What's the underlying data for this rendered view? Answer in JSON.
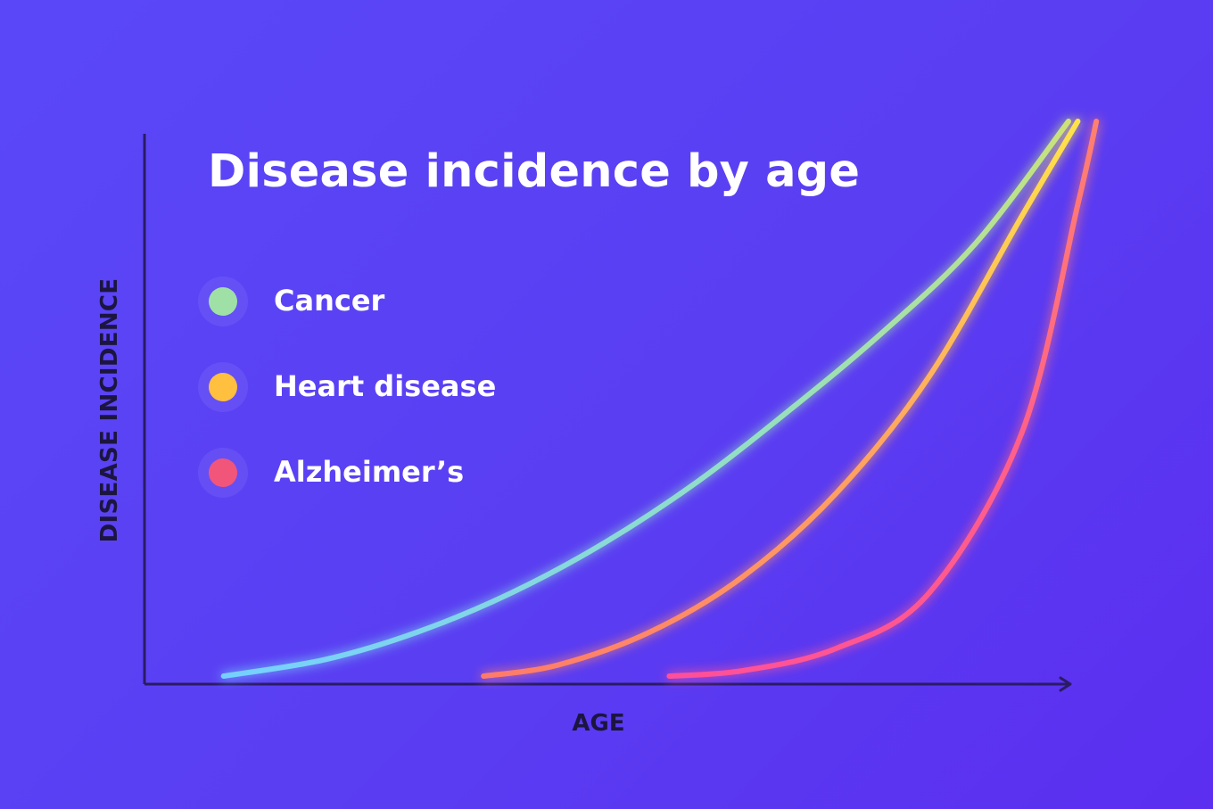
{
  "chart_data": {
    "type": "line",
    "title": "Disease incidence by age",
    "xlabel": "AGE",
    "ylabel": "DISEASE INCIDENCE",
    "xlim": [
      0,
      100
    ],
    "ylim": [
      0,
      100
    ],
    "grid": false,
    "legend_position": "left",
    "series": [
      {
        "name": "Cancer",
        "color": "#9fe0a7",
        "x": [
          9,
          20,
          30,
          40,
          50,
          60,
          70,
          80,
          90,
          100
        ],
        "y": [
          0,
          3,
          8,
          15,
          24,
          35,
          48,
          62,
          78,
          100
        ]
      },
      {
        "name": "Heart disease",
        "color": "#ffbf3f",
        "x": [
          37,
          45,
          55,
          65,
          75,
          85,
          95,
          101
        ],
        "y": [
          0,
          2,
          8,
          18,
          33,
          54,
          83,
          100
        ]
      },
      {
        "name": "Alzheimer’s",
        "color": "#f2557a",
        "x": [
          57,
          65,
          75,
          85,
          95,
          101,
          103
        ],
        "y": [
          0,
          1,
          5,
          15,
          44,
          85,
          100
        ]
      }
    ]
  }
}
